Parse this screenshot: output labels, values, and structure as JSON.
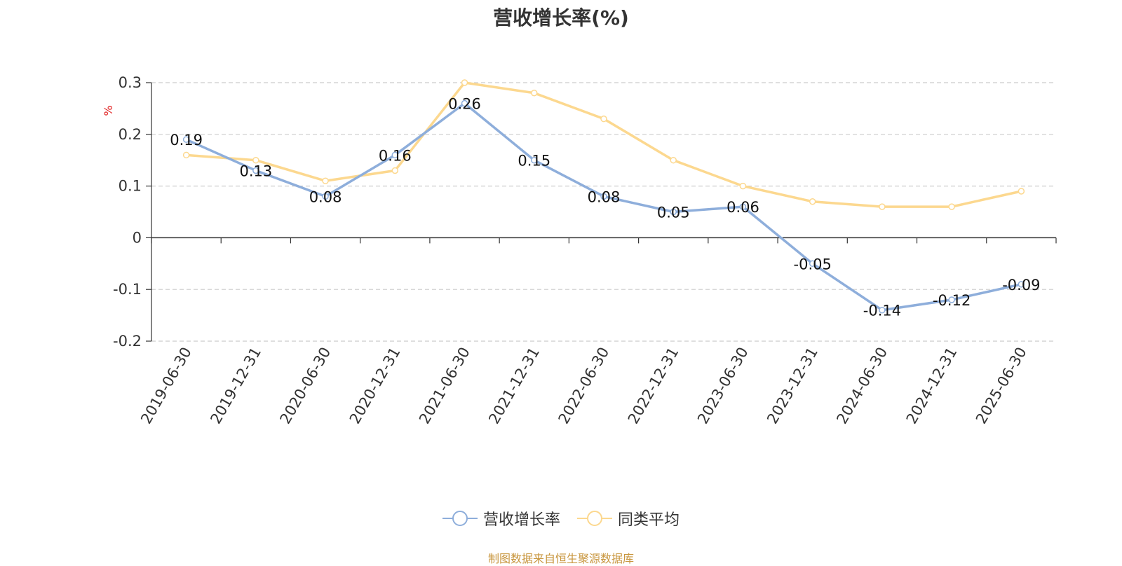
{
  "chart_data": {
    "type": "line",
    "title": "营收增长率(%)",
    "ylabel": "%",
    "xlabel": "",
    "categories": [
      "2019-06-30",
      "2019-12-31",
      "2020-06-30",
      "2020-12-31",
      "2021-06-30",
      "2021-12-31",
      "2022-06-30",
      "2022-12-31",
      "2023-06-30",
      "2023-12-31",
      "2024-06-30",
      "2024-12-31",
      "2025-06-30"
    ],
    "ylim": [
      -0.2,
      0.3
    ],
    "yticks": [
      "0.3",
      "0.2",
      "0.1",
      "0",
      "-0.1",
      "-0.2"
    ],
    "ytick_values": [
      0.3,
      0.2,
      0.1,
      0,
      -0.1,
      -0.2
    ],
    "grid": true,
    "legend_position": "bottom-center",
    "series": [
      {
        "name": "营收增长率",
        "color": "#8eaedb",
        "values": [
          0.19,
          0.13,
          0.08,
          0.16,
          0.26,
          0.15,
          0.08,
          0.05,
          0.06,
          -0.05,
          -0.14,
          -0.12,
          -0.09
        ],
        "labels": [
          "0.19",
          "0.13",
          "0.08",
          "0.16",
          "0.26",
          "0.15",
          "0.08",
          "0.05",
          "0.06",
          "-0.05",
          "-0.14",
          "-0.12",
          "-0.09"
        ]
      },
      {
        "name": "同类平均",
        "color": "#fcd88f",
        "values": [
          0.16,
          0.15,
          0.11,
          0.13,
          0.3,
          0.28,
          0.23,
          0.15,
          0.1,
          0.07,
          0.06,
          0.06,
          0.09
        ]
      }
    ]
  },
  "footer": {
    "source": "制图数据来自恒生聚源数据库"
  },
  "colors": {
    "axis": "#333333",
    "grid": "#cccccc",
    "ylabel": "#e02020",
    "text": "#333333",
    "source": "#c8963e"
  }
}
